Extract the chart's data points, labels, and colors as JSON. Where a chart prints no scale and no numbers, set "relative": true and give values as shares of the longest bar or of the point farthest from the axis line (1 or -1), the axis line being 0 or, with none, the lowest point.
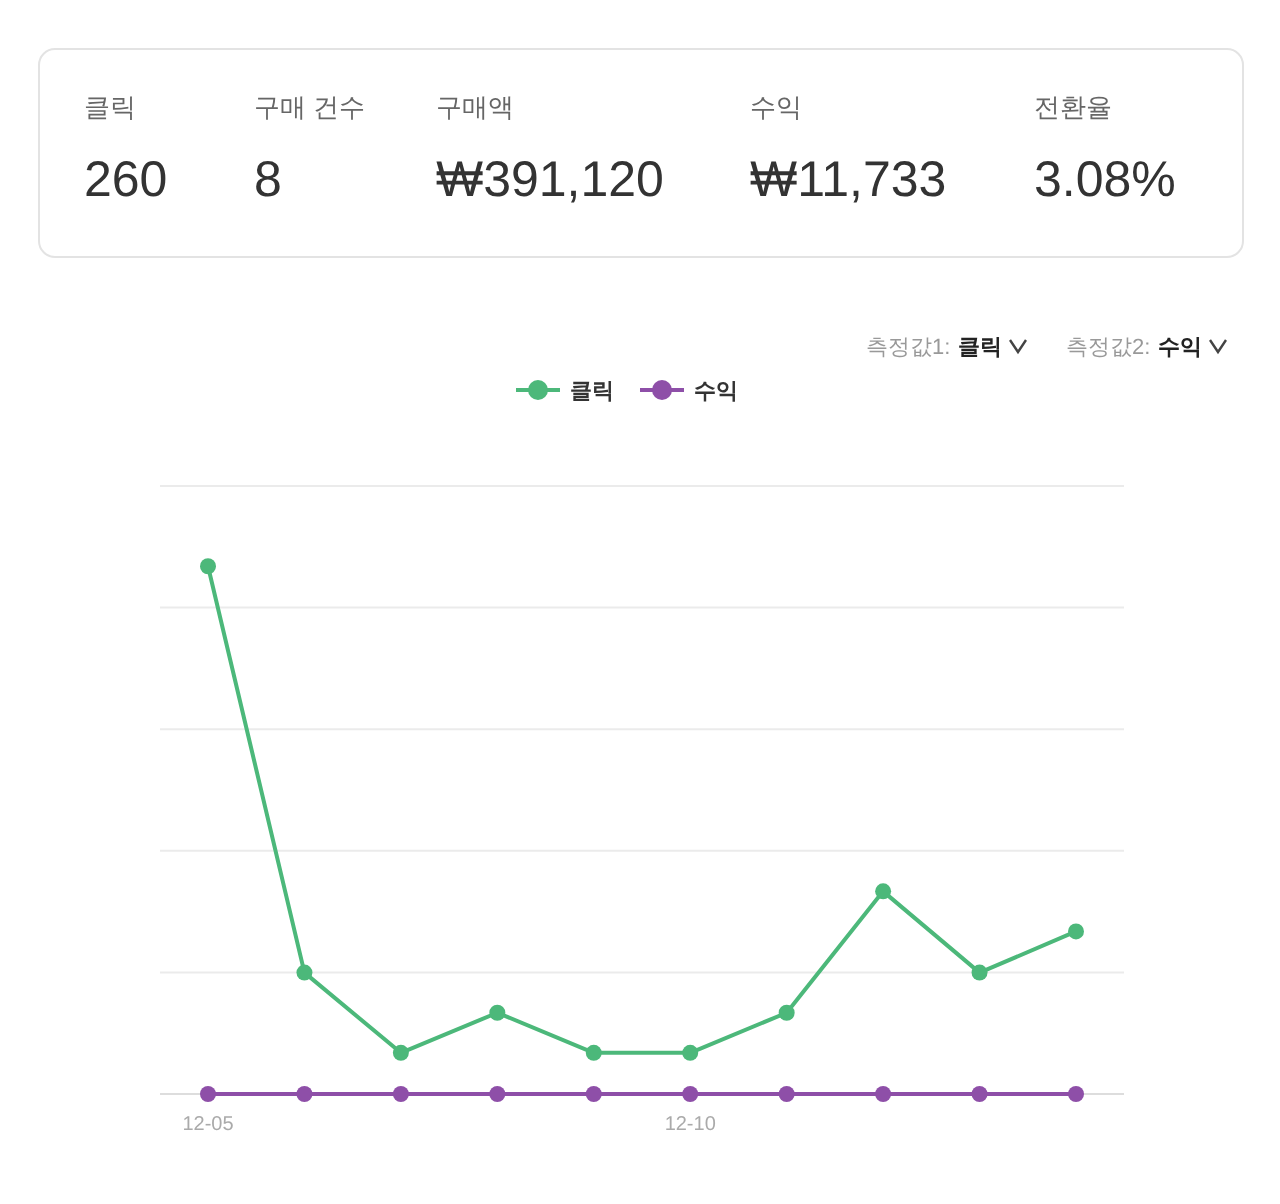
{
  "chart_data": [
    {
      "type": "other",
      "annotations": [
        "클릭",
        "260",
        "구매 건수",
        "8",
        "구매액",
        "₩391,120",
        "수익",
        "₩11,733",
        "전환율",
        "3.08%"
      ]
    },
    {
      "type": "line",
      "relative": true,
      "categories": [
        "12-05",
        null,
        null,
        null,
        null,
        "12-10",
        null,
        null,
        null,
        null
      ],
      "series": [
        {
          "name": "클릭",
          "color": "#4cb87a",
          "values": [
            1,
            0.23,
            0.078,
            0.154,
            0.078,
            0.078,
            0.154,
            0.384,
            0.23,
            0.308
          ]
        },
        {
          "name": "수익",
          "color": "#8e4fa8",
          "values": [
            0,
            0,
            0,
            0,
            0,
            0,
            0,
            0,
            0,
            0
          ]
        }
      ],
      "annotations": [
        "측정값1:",
        "클릭",
        "측정값2:",
        "수익"
      ],
      "grid": "y",
      "legend": "top",
      "marker": "circle",
      "line_style": "solid"
    }
  ]
}
